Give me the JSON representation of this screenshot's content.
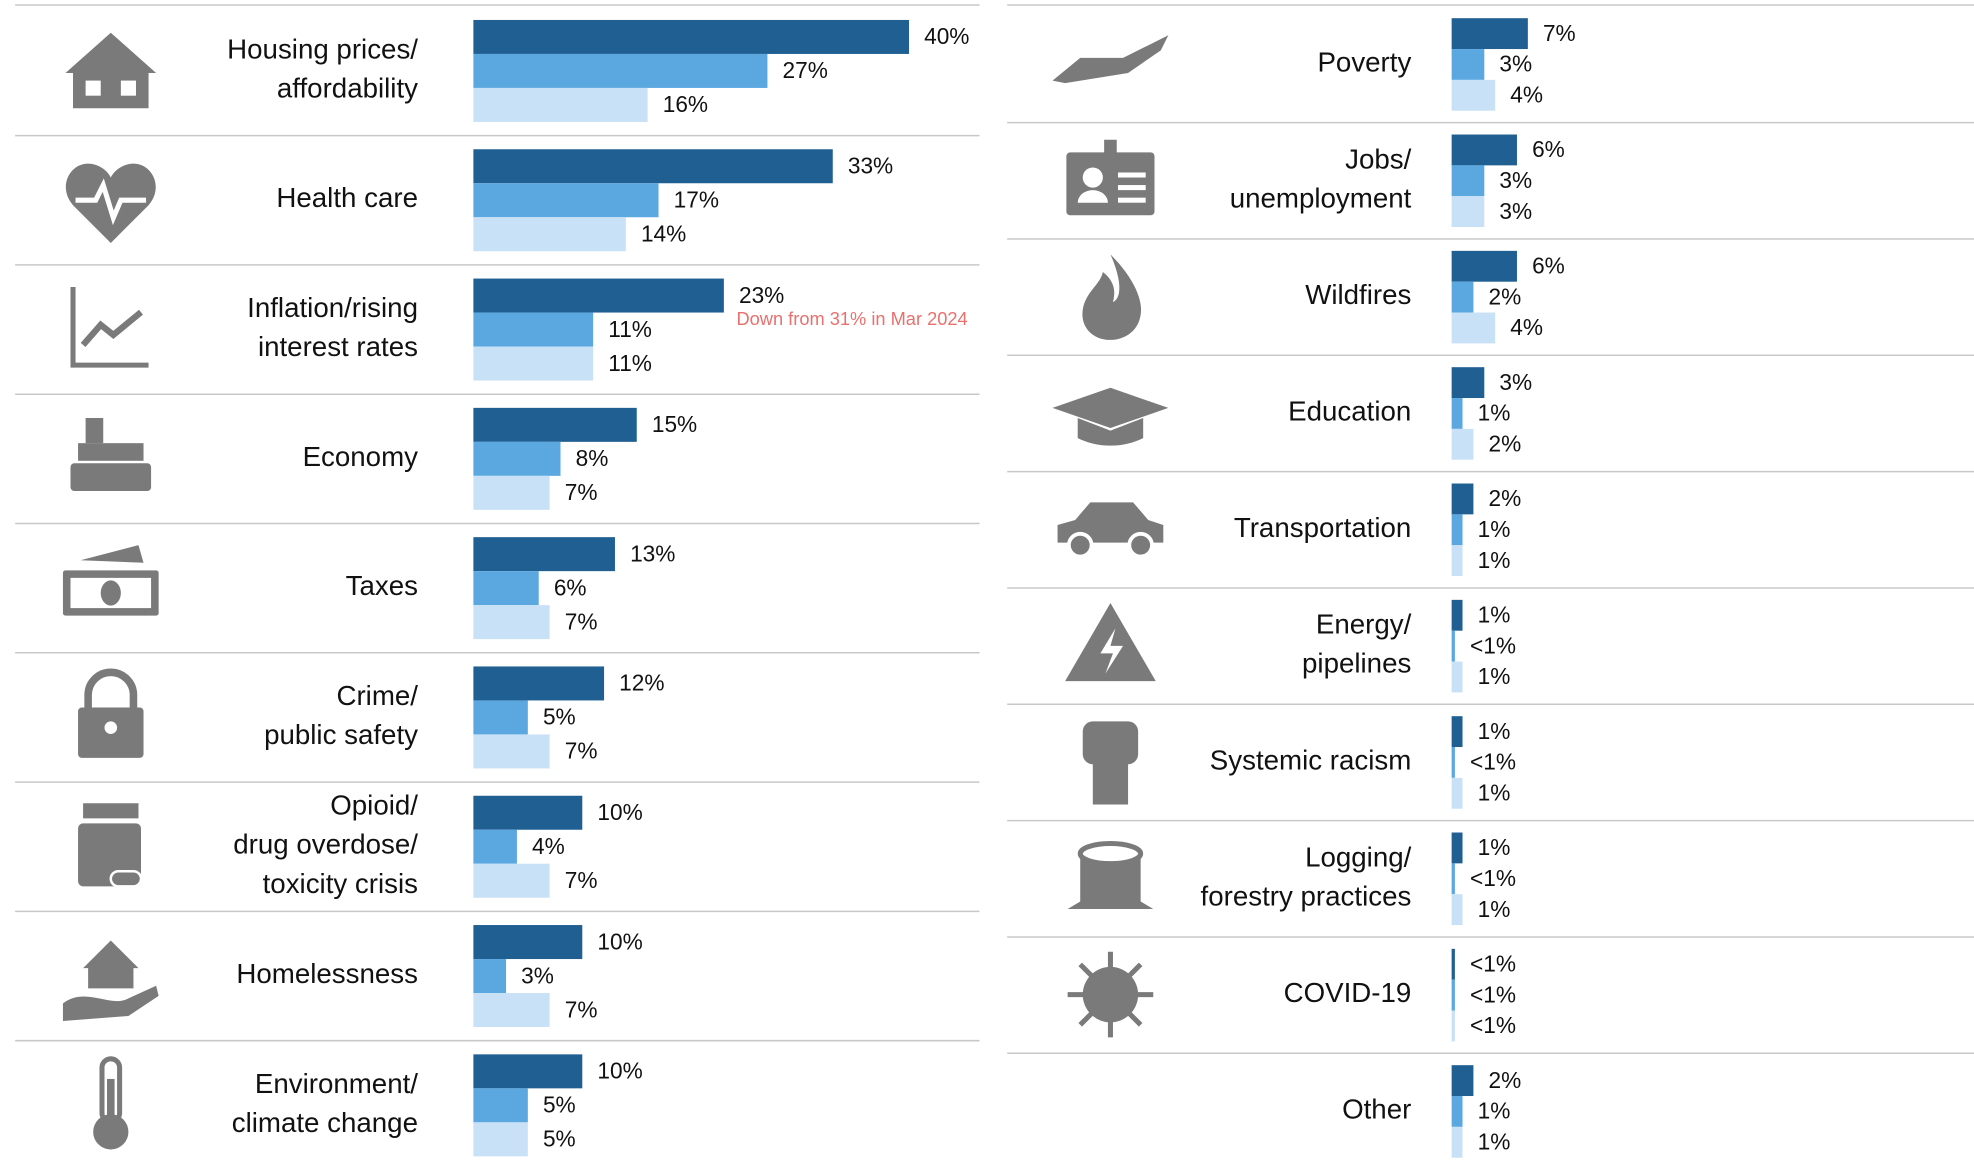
{
  "chart_data": [
    {
      "type": "bar",
      "orientation": "horizontal",
      "categories": [
        "Housing prices/\naffordability",
        "Health care",
        "Inflation/rising\ninterest rates",
        "Economy",
        "Taxes",
        "Crime/\npublic safety",
        "Opioid/\ndrug overdose/\ntoxicity crisis",
        "Homelessness",
        "Environment/\nclimate change"
      ],
      "series": [
        {
          "color": "#1f5f92",
          "values": [
            40,
            33,
            23,
            15,
            13,
            12,
            10,
            10,
            10
          ],
          "value_labels": [
            "40%",
            "33%",
            "23%",
            "15%",
            "13%",
            "12%",
            "10%",
            "10%",
            "10%"
          ]
        },
        {
          "color": "#5ba8e1",
          "values": [
            27,
            17,
            11,
            8,
            6,
            5,
            4,
            3,
            5
          ],
          "value_labels": [
            "27%",
            "17%",
            "11%",
            "8%",
            "6%",
            "5%",
            "4%",
            "3%",
            "5%"
          ]
        },
        {
          "color": "#c9e1f6",
          "values": [
            16,
            14,
            11,
            7,
            7,
            7,
            7,
            7,
            5
          ],
          "value_labels": [
            "16%",
            "14%",
            "11%",
            "7%",
            "7%",
            "7%",
            "7%",
            "7%",
            "5%"
          ]
        }
      ],
      "annotation": "Down from 31% in Mar 2024"
    },
    {
      "type": "bar",
      "orientation": "horizontal",
      "categories": [
        "Poverty",
        "Jobs/\nunemployment",
        "Wildfires",
        "Education",
        "Transportation",
        "Energy/\npipelines",
        "Systemic racism",
        "Logging/\nforestry practices",
        "COVID-19",
        "Other"
      ],
      "series": [
        {
          "color": "#1f5f92",
          "values": [
            7,
            6,
            6,
            3,
            2,
            1,
            1,
            1,
            0.3,
            2
          ],
          "value_labels": [
            "7%",
            "6%",
            "6%",
            "3%",
            "2%",
            "1%",
            "1%",
            "1%",
            "<1%",
            "2%"
          ]
        },
        {
          "color": "#5ba8e1",
          "values": [
            3,
            3,
            2,
            1,
            1,
            0.3,
            0.3,
            0.3,
            0.3,
            1
          ],
          "value_labels": [
            "3%",
            "3%",
            "2%",
            "1%",
            "1%",
            "<1%",
            "<1%",
            "<1%",
            "<1%",
            "1%"
          ]
        },
        {
          "color": "#c9e1f6",
          "values": [
            4,
            3,
            4,
            2,
            1,
            1,
            1,
            1,
            0.3,
            1
          ],
          "value_labels": [
            "4%",
            "3%",
            "4%",
            "2%",
            "1%",
            "1%",
            "1%",
            "1%",
            "<1%",
            "1%"
          ]
        }
      ]
    }
  ]
}
